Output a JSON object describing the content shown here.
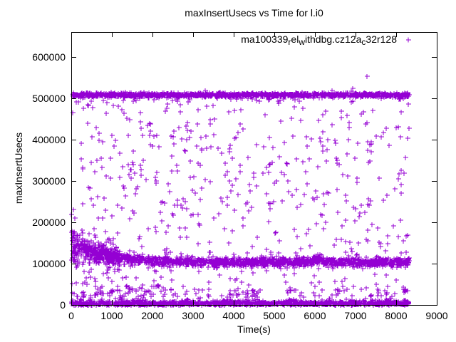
{
  "chart_data": {
    "type": "scatter",
    "title": "maxInsertUsecs vs Time for l.i0",
    "xlabel": "Time(s)",
    "ylabel": "maxInsertUsecs",
    "xlim": [
      0,
      9000
    ],
    "ylim": [
      0,
      660000
    ],
    "xticks": [
      {
        "v": 0,
        "label": "0"
      },
      {
        "v": 1000,
        "label": "1000"
      },
      {
        "v": 2000,
        "label": "2000"
      },
      {
        "v": 3000,
        "label": "3000"
      },
      {
        "v": 4000,
        "label": "4000"
      },
      {
        "v": 5000,
        "label": "5000"
      },
      {
        "v": 6000,
        "label": "6000"
      },
      {
        "v": 7000,
        "label": "7000"
      },
      {
        "v": 8000,
        "label": "8000"
      },
      {
        "v": 9000,
        "label": "9000"
      }
    ],
    "yticks": [
      {
        "v": 0,
        "label": "0"
      },
      {
        "v": 100000,
        "label": "100000"
      },
      {
        "v": 200000,
        "label": "200000"
      },
      {
        "v": 300000,
        "label": "300000"
      },
      {
        "v": 400000,
        "label": "400000"
      },
      {
        "v": 500000,
        "label": "500000"
      },
      {
        "v": 600000,
        "label": "600000"
      }
    ],
    "grid": false,
    "legend_position": "top-right-inside",
    "legend": {
      "segments": [
        {
          "t": "ma100339",
          "sub": false
        },
        {
          "t": "r",
          "sub": true
        },
        {
          "t": "el",
          "sub": false
        },
        {
          "t": "w",
          "sub": true
        },
        {
          "t": "ithdbg.cz12a",
          "sub": false
        },
        {
          "t": "c",
          "sub": true
        },
        {
          "t": "32r128",
          "sub": false
        }
      ],
      "marker": "+"
    },
    "marker_glyph": "+",
    "marker_color": "#9400D3",
    "axis_color": "#000000",
    "x_data_max": 8310,
    "seed": 42,
    "clusters": [
      {
        "kind": "normal",
        "count": 1250,
        "x": [
          15,
          8310
        ],
        "mean": 508500,
        "sigma": 2600,
        "note": "dense steady band near 508000 usecs across full run"
      },
      {
        "kind": "normal",
        "count": 70,
        "x": [
          30,
          8310
        ],
        "mean": 502000,
        "sigma": 5000,
        "note": "light fuzz just below the 508k band"
      },
      {
        "kind": "decay",
        "count": 1600,
        "x": [
          0,
          8310
        ],
        "base": 103500,
        "amp": 45000,
        "tau": 850,
        "sig_base": 5200,
        "sig_amp": 15000,
        "sig_tau": 650,
        "bump_x": 6050,
        "bump_w": 160,
        "bump_amp": 9000,
        "note": "mid band: ~148k at t=0 decaying to ~104k, small bump near t=6050"
      },
      {
        "kind": "decay",
        "count": 150,
        "x": [
          0,
          1200
        ],
        "base": 103500,
        "amp": 45000,
        "tau": 850,
        "sig_base": 9000,
        "sig_amp": 20000,
        "sig_tau": 900,
        "note": "extra early-run spread of the mid band"
      },
      {
        "kind": "absnormal",
        "count": 1150,
        "x": [
          0,
          8310
        ],
        "base": 500,
        "sigma": 4800,
        "max": 17000,
        "note": "dense bottom band ~0-15k usecs"
      },
      {
        "kind": "uniform",
        "count": 100,
        "x": [
          0,
          8310
        ],
        "y": [
          12000,
          38000
        ],
        "note": "sparse halo above bottom band"
      },
      {
        "kind": "uniform",
        "count": 60,
        "x": [
          0,
          2400
        ],
        "y": [
          15000,
          52000
        ],
        "note": "denser low halo during first 2400s"
      },
      {
        "kind": "uniform",
        "count": 560,
        "x": [
          30,
          8310
        ],
        "y": [
          18000,
          497000
        ],
        "note": "random spikes scattered between the bands"
      },
      {
        "kind": "points",
        "pts": [
          [
            3300,
            519000
          ],
          [
            6930,
            524000
          ],
          [
            7280,
            553000
          ]
        ],
        "note": "outliers above the 508k band; max ~553000 usecs at t~7280"
      }
    ]
  }
}
